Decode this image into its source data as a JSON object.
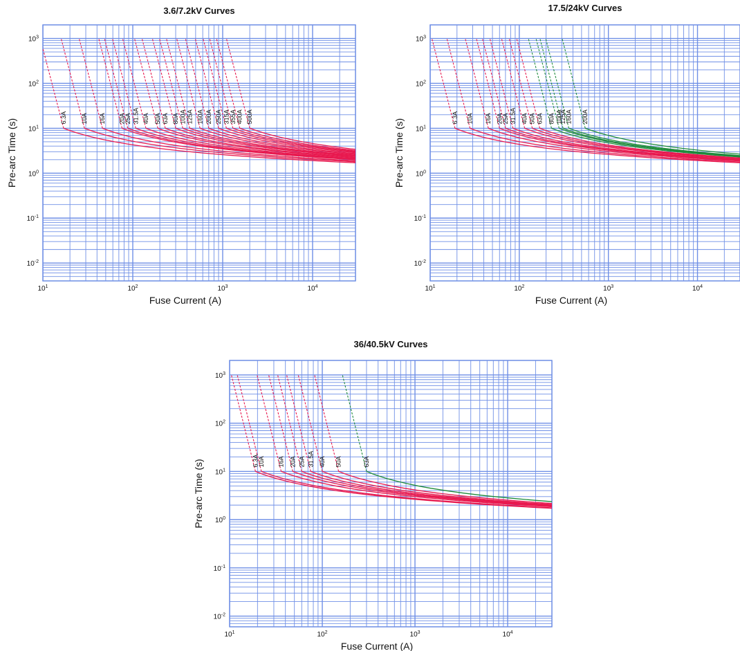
{
  "chart_data": [
    {
      "type": "line",
      "title": "3.6/7.2kV Curves",
      "xlabel": "Fuse Current (A)",
      "ylabel": "Pre-arc Time (s)",
      "xscale": "log",
      "yscale": "log",
      "xlim": [
        10,
        30000
      ],
      "ylim": [
        0.004,
        2000
      ],
      "xticks": [
        10,
        100,
        1000,
        10000
      ],
      "xticklabels": [
        [
          "10",
          "1"
        ],
        [
          "10",
          "2"
        ],
        [
          "10",
          "3"
        ],
        [
          "10",
          "4"
        ]
      ],
      "yticks": [
        0.01,
        0.1,
        1,
        10,
        100,
        1000
      ],
      "yticklabels": [
        [
          "10",
          "-2"
        ],
        [
          "10",
          "-1"
        ],
        [
          "10",
          "0"
        ],
        [
          "10",
          "1"
        ],
        [
          "10",
          "2"
        ],
        [
          "10",
          "3"
        ]
      ],
      "grid": true,
      "series": [
        {
          "name": "6.3A",
          "color": "#e8194f",
          "x_at_10s": 17,
          "x_at_0_01s": 90
        },
        {
          "name": "10A",
          "color": "#e8194f",
          "x_at_10s": 29,
          "x_at_0_01s": 165
        },
        {
          "name": "16A",
          "color": "#e8194f",
          "x_at_10s": 46,
          "x_at_0_01s": 250
        },
        {
          "name": "20A",
          "color": "#e8194f",
          "x_at_10s": 76,
          "x_at_0_01s": 400
        },
        {
          "name": "25A",
          "color": "#e8194f",
          "x_at_10s": 88,
          "x_at_0_01s": 470
        },
        {
          "name": "31.5A",
          "color": "#e8194f",
          "x_at_10s": 108,
          "x_at_0_01s": 560
        },
        {
          "name": "40A",
          "color": "#e8194f",
          "x_at_10s": 140,
          "x_at_0_01s": 700
        },
        {
          "name": "50A",
          "color": "#e8194f",
          "x_at_10s": 190,
          "x_at_0_01s": 900
        },
        {
          "name": "63A",
          "color": "#e8194f",
          "x_at_10s": 230,
          "x_at_0_01s": 1100
        },
        {
          "name": "80A",
          "color": "#e8194f",
          "x_at_10s": 300,
          "x_at_0_01s": 1550
        },
        {
          "name": "100A",
          "color": "#e8194f",
          "x_at_10s": 360,
          "x_at_0_01s": 2000
        },
        {
          "name": "125A",
          "color": "#e8194f",
          "x_at_10s": 430,
          "x_at_0_01s": 2600
        },
        {
          "name": "160A",
          "color": "#e8194f",
          "x_at_10s": 560,
          "x_at_0_01s": 3300
        },
        {
          "name": "200A",
          "color": "#e8194f",
          "x_at_10s": 700,
          "x_at_0_01s": 4100
        },
        {
          "name": "250A",
          "color": "#e8194f",
          "x_at_10s": 900,
          "x_at_0_01s": 5300
        },
        {
          "name": "315A",
          "color": "#e8194f",
          "x_at_10s": 1100,
          "x_at_0_01s": 6800
        },
        {
          "name": "355A",
          "color": "#e8194f",
          "x_at_10s": 1300,
          "x_at_0_01s": 8500
        },
        {
          "name": "400A",
          "color": "#e8194f",
          "x_at_10s": 1550,
          "x_at_0_01s": 11500
        },
        {
          "name": "500A",
          "color": "#e8194f",
          "x_at_10s": 2000,
          "x_at_0_01s": 16000
        }
      ]
    },
    {
      "type": "line",
      "title": "17.5/24kV Curves",
      "xlabel": "Fuse Current (A)",
      "ylabel": "Pre-arc Time (s)",
      "xscale": "log",
      "yscale": "log",
      "xlim": [
        10,
        30000
      ],
      "ylim": [
        0.004,
        2000
      ],
      "xticks": [
        10,
        100,
        1000,
        10000
      ],
      "xticklabels": [
        [
          "10",
          "1"
        ],
        [
          "10",
          "2"
        ],
        [
          "10",
          "3"
        ],
        [
          "10",
          "4"
        ]
      ],
      "yticks": [
        0.01,
        0.1,
        1,
        10,
        100,
        1000
      ],
      "yticklabels": [
        [
          "10",
          "-2"
        ],
        [
          "10",
          "-1"
        ],
        [
          "10",
          "0"
        ],
        [
          "10",
          "1"
        ],
        [
          "10",
          "2"
        ],
        [
          "10",
          "3"
        ]
      ],
      "grid": true,
      "series": [
        {
          "name": "6.3A",
          "color": "#e8194f",
          "x_at_10s": 19,
          "x_at_0_01s": 75
        },
        {
          "name": "10A",
          "color": "#e8194f",
          "x_at_10s": 28,
          "x_at_0_01s": 130
        },
        {
          "name": "16A",
          "color": "#e8194f",
          "x_at_10s": 45,
          "x_at_0_01s": 190
        },
        {
          "name": "20A",
          "color": "#e8194f",
          "x_at_10s": 60,
          "x_at_0_01s": 260
        },
        {
          "name": "25A",
          "color": "#e8194f",
          "x_at_10s": 70,
          "x_at_0_01s": 320
        },
        {
          "name": "31.5A",
          "color": "#e8194f",
          "x_at_10s": 85,
          "x_at_0_01s": 400
        },
        {
          "name": "40A",
          "color": "#e8194f",
          "x_at_10s": 115,
          "x_at_0_01s": 500
        },
        {
          "name": "50A",
          "color": "#e8194f",
          "x_at_10s": 140,
          "x_at_0_01s": 600
        },
        {
          "name": "63A",
          "color": "#e8194f",
          "x_at_10s": 170,
          "x_at_0_01s": 700
        },
        {
          "name": "80A",
          "color": "#1e8a3a",
          "x_at_10s": 230,
          "x_at_0_01s": 1150
        },
        {
          "name": "100A",
          "color": "#1e8a3a",
          "x_at_10s": 280,
          "x_at_0_01s": 1400
        },
        {
          "name": "125A",
          "color": "#1e8a3a",
          "x_at_10s": 310,
          "x_at_0_01s": 1650
        },
        {
          "name": "160A",
          "color": "#1e8a3a",
          "x_at_10s": 360,
          "x_at_0_01s": 2400
        },
        {
          "name": "200A",
          "color": "#1e8a3a",
          "x_at_10s": 550,
          "x_at_0_01s": 4800
        }
      ]
    },
    {
      "type": "line",
      "title": "36/40.5kV Curves",
      "xlabel": "Fuse Current (A)",
      "ylabel": "Pre-arc Time (s)",
      "xscale": "log",
      "yscale": "log",
      "xlim": [
        10,
        30000
      ],
      "ylim": [
        0.006,
        2000
      ],
      "xticks": [
        10,
        100,
        1000,
        10000
      ],
      "xticklabels": [
        [
          "10",
          "1"
        ],
        [
          "10",
          "2"
        ],
        [
          "10",
          "3"
        ],
        [
          "10",
          "4"
        ]
      ],
      "yticks": [
        0.01,
        0.1,
        1,
        10,
        100,
        1000
      ],
      "yticklabels": [
        [
          "10",
          "-2"
        ],
        [
          "10",
          "-1"
        ],
        [
          "10",
          "0"
        ],
        [
          "10",
          "1"
        ],
        [
          "10",
          "2"
        ],
        [
          "10",
          "3"
        ]
      ],
      "grid": true,
      "series": [
        {
          "name": "6.3A",
          "color": "#e8194f",
          "x_at_10s": 19,
          "x_at_0_01s": 100
        },
        {
          "name": "10A",
          "color": "#e8194f",
          "x_at_10s": 22,
          "x_at_0_01s": 180
        },
        {
          "name": "16A",
          "color": "#e8194f",
          "x_at_10s": 36,
          "x_at_0_01s": 290
        },
        {
          "name": "20A",
          "color": "#e8194f",
          "x_at_10s": 48,
          "x_at_0_01s": 380
        },
        {
          "name": "25A",
          "color": "#e8194f",
          "x_at_10s": 60,
          "x_at_0_01s": 470
        },
        {
          "name": "31.5A",
          "color": "#e8194f",
          "x_at_10s": 75,
          "x_at_0_01s": 560
        },
        {
          "name": "40A",
          "color": "#e8194f",
          "x_at_10s": 100,
          "x_at_0_01s": 660
        },
        {
          "name": "50A",
          "color": "#e8194f",
          "x_at_10s": 150,
          "x_at_0_01s": 820
        },
        {
          "name": "63A",
          "color": "#1e8a3a",
          "x_at_10s": 300,
          "x_at_0_01s": 1200
        }
      ]
    }
  ]
}
